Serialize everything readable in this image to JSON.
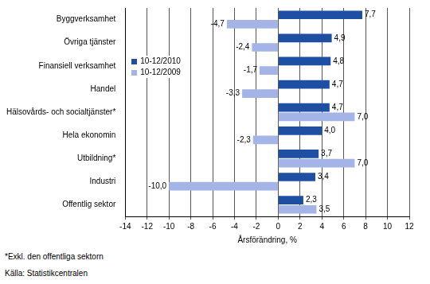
{
  "chart_data": {
    "type": "bar",
    "orientation": "horizontal",
    "categories": [
      "Byggverksamhet",
      "Övriga tjänster",
      "Finansiell verksamhet",
      "Handel",
      "Hälsovårds- och socialtjänster*",
      "Hela ekonomin",
      "Utbildning*",
      "Industri",
      "Offentlig sektor"
    ],
    "series": [
      {
        "name": "10-12/2010",
        "color": "#1f4fa3",
        "values": [
          7.7,
          4.9,
          4.8,
          4.7,
          4.7,
          4.0,
          3.7,
          3.4,
          2.3
        ],
        "value_labels": [
          "7,7",
          "4,9",
          "4,8",
          "4,7",
          "4,7",
          "4,0",
          "3,7",
          "3,4",
          "2,3"
        ]
      },
      {
        "name": "10-12/2009",
        "color": "#a4b4e6",
        "values": [
          -4.7,
          -2.4,
          -1.7,
          -3.3,
          7.0,
          -2.3,
          7.0,
          -10.0,
          3.5
        ],
        "value_labels": [
          "-4,7",
          "-2,4",
          "-1,7",
          "-3,3",
          "7,0",
          "-2,3",
          "7,0",
          "-10,0",
          "3,5"
        ]
      }
    ],
    "xlim": [
      -14,
      12
    ],
    "xticks": [
      -14,
      -12,
      -10,
      -8,
      -6,
      -4,
      -2,
      0,
      2,
      4,
      6,
      8,
      10,
      12
    ],
    "x_label": "Årsförändring, %",
    "grid": true,
    "legend": "upper left",
    "data_labels": true,
    "annotations": [
      "*Exkl. den offentliga sektorn",
      "Källa: Statistikcentralen"
    ]
  }
}
